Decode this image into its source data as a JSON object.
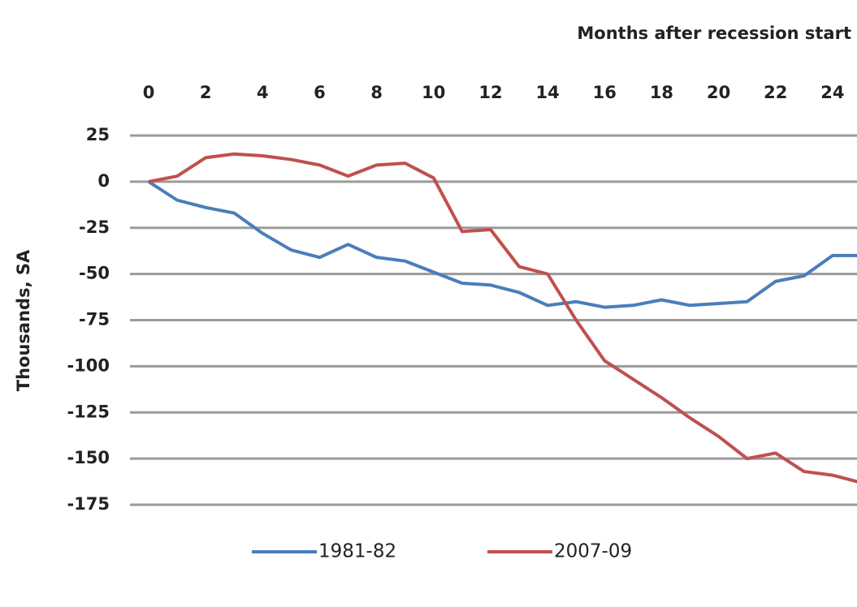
{
  "chart_data": {
    "type": "line",
    "title": "Months after recession start",
    "ylabel": "Thousands, SA",
    "x": [
      0,
      1,
      2,
      3,
      4,
      5,
      6,
      7,
      8,
      9,
      10,
      11,
      12,
      13,
      14,
      15,
      16,
      17,
      18,
      19,
      20,
      21,
      22,
      23,
      24,
      25
    ],
    "series": [
      {
        "name": "1981-82",
        "color": "#4a7ebb",
        "values": [
          0,
          -10,
          -14,
          -17,
          -28,
          -37,
          -41,
          -34,
          -41,
          -43,
          -49,
          -55,
          -56,
          -60,
          -67,
          -65,
          -68,
          -67,
          -64,
          -67,
          -66,
          -65,
          -54,
          -51,
          -40,
          -40
        ]
      },
      {
        "name": "2007-09",
        "color": "#c0504d",
        "values": [
          0,
          3,
          13,
          15,
          14,
          12,
          9,
          3,
          9,
          10,
          2,
          -27,
          -26,
          -46,
          -50,
          -75,
          -97,
          -107,
          -117,
          -128,
          -138,
          -150,
          -147,
          -157,
          -159,
          -163
        ]
      }
    ],
    "xlim": [
      0,
      25
    ],
    "xticks": [
      0,
      2,
      4,
      6,
      8,
      10,
      12,
      14,
      16,
      18,
      20,
      22,
      24
    ],
    "ylim": [
      -175,
      25
    ],
    "yticks": [
      25,
      0,
      -25,
      -50,
      -75,
      -100,
      -125,
      -150,
      -175
    ],
    "grid": true,
    "legend": "bottom"
  }
}
